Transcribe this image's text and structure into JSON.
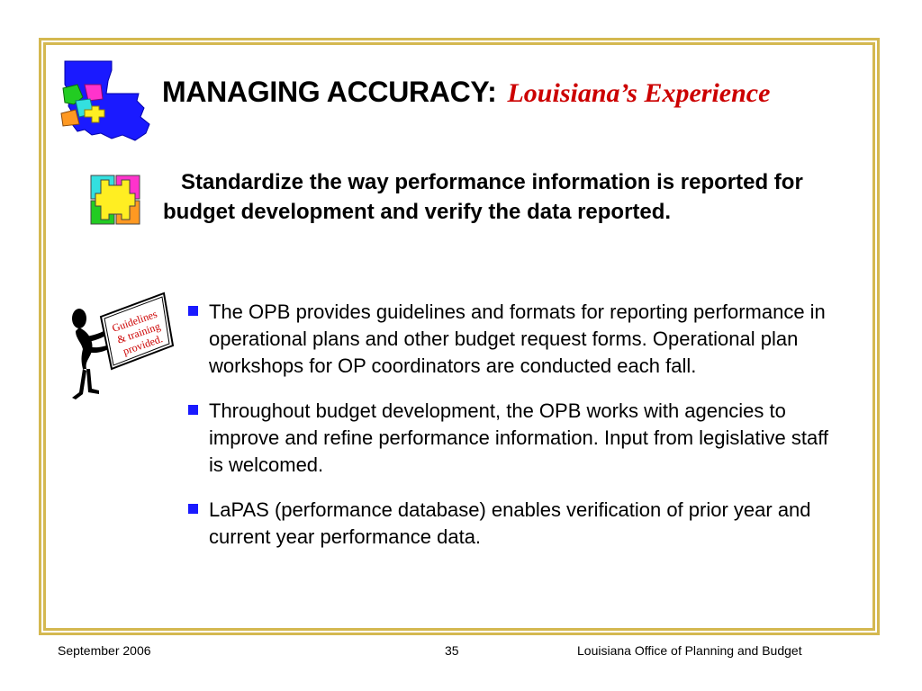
{
  "slide": {
    "title_main": "MANAGING ACCURACY:",
    "title_sub": "Louisiana’s Experience",
    "heading": "Standardize the way performance information is reported for budget development and verify the data reported.",
    "sign_text": [
      "Guidelines",
      "& training",
      "provided."
    ],
    "bullets": [
      "The OPB provides guidelines and formats for reporting performance in operational plans and other budget request forms.  Operational plan workshops for OP coordinators are conducted each fall.",
      "Throughout budget development, the OPB works with agencies to improve and refine performance information.  Input from legislative staff is welcomed.",
      "LaPAS (performance database) enables verification of prior year and current year performance data."
    ]
  },
  "footer": {
    "date": "September 2006",
    "page": "35",
    "org": "Louisiana Office of Planning and Budget"
  },
  "colors": {
    "frame": "#d4b850",
    "title_sub": "#cc0000",
    "bullet": "#1a1aff",
    "map_blue": "#1a1aff",
    "sign_text": "#cc0000"
  }
}
